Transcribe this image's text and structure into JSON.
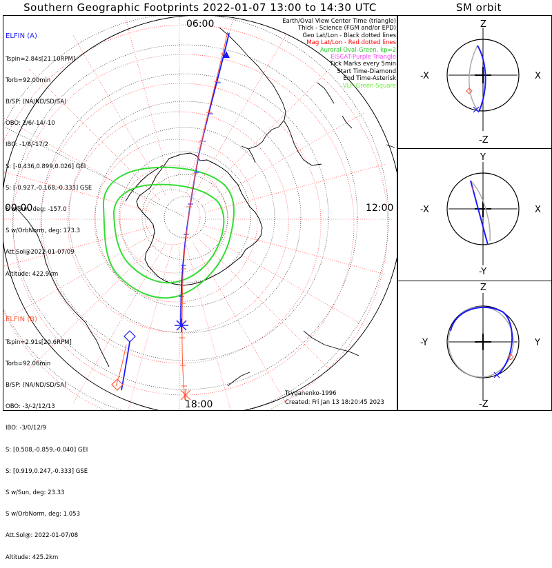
{
  "title": "Southern Geographic Footprints 2022-01-07 13:00 to 14:30 UTC",
  "sm_title": "SM orbit",
  "clock_labels": {
    "top": "06:00",
    "left": "00:00",
    "right": "12:00",
    "bottom": "18:00"
  },
  "elfin_a": {
    "name": "ELFIN (A)",
    "color": "#1a1aff",
    "lines": [
      "Tspin=2.84s[21.10RPM]",
      "Torb=92.00min",
      "B/SP: (NA/ND/SD/SA)",
      "OBO: 2/6/-14/-10",
      "IBO: -1/8/-17/2",
      "S: [-0.436,0.899,0.026] GEI",
      "S: [-0.927,-0.168,-0.333] GSE",
      "S w/Sun, deg: -157.0",
      "S w/OrbNorm, deg: 173.3",
      "Att.Sol@2022-01-07/09",
      "Altitude: 422.9km"
    ]
  },
  "elfin_b": {
    "name": "ELFIN (B)",
    "color": "#ff5533",
    "lines": [
      "Tspin=2.91s[20.6RPM]",
      "Torb=92.06min",
      "B/SP: (NA/ND/SD/SA)",
      "OBO: -3/-2/12/13",
      "IBO: -3/0/12/9",
      "S: [0.508,-0.859,-0.040] GEI",
      "S: [0.919,0.247,-0.333] GSE",
      "S w/Sun, deg: 23.33",
      "S w/OrbNorm, deg: 1.053",
      "Att.Sol@: 2022-01-07/08",
      "Altitude: 425.2km"
    ]
  },
  "legend": [
    {
      "text": "Earth/Oval View Center Time (triangle)",
      "color": "#000000"
    },
    {
      "text": "Thick - Science (FGM and/or EPD)",
      "color": "#000000"
    },
    {
      "text": "Geo Lat/Lon - Black dotted lines",
      "color": "#000000"
    },
    {
      "text": "Mag Lat/Lon - Red dotted lines",
      "color": "#ff0000"
    },
    {
      "text": "Auroral Oval-Green, kp=2",
      "color": "#22cc22"
    },
    {
      "text": "EISCAT-Purple Triangle",
      "color": "#ff44ff"
    },
    {
      "text": "Tick Marks every 5min",
      "color": "#000000"
    },
    {
      "text": "Start Time-Diamond",
      "color": "#000000"
    },
    {
      "text": "End Time-Asterisk",
      "color": "#000000"
    },
    {
      "text": "VLF-Green Square",
      "color": "#66ee33"
    }
  ],
  "footer": {
    "model": "Tsyganenko-1996",
    "created": "Created: Fri Jan 13 18:20:45 2023"
  },
  "sm_panels": [
    {
      "name": "xz",
      "top": "Z",
      "bottom": "-Z",
      "left": "-X",
      "right": "X"
    },
    {
      "name": "xy",
      "top": "Y",
      "bottom": "-Y",
      "left": "-X",
      "right": "X"
    },
    {
      "name": "yz",
      "top": "Z",
      "bottom": "-Z",
      "left": "-Y",
      "right": "Y"
    }
  ],
  "colors": {
    "elfin_a": "#1a1aff",
    "elfin_b": "#ff5533",
    "geo_grid": "#000000",
    "mag_grid": "#ff3333",
    "auroral_oval": "#33dd33"
  }
}
